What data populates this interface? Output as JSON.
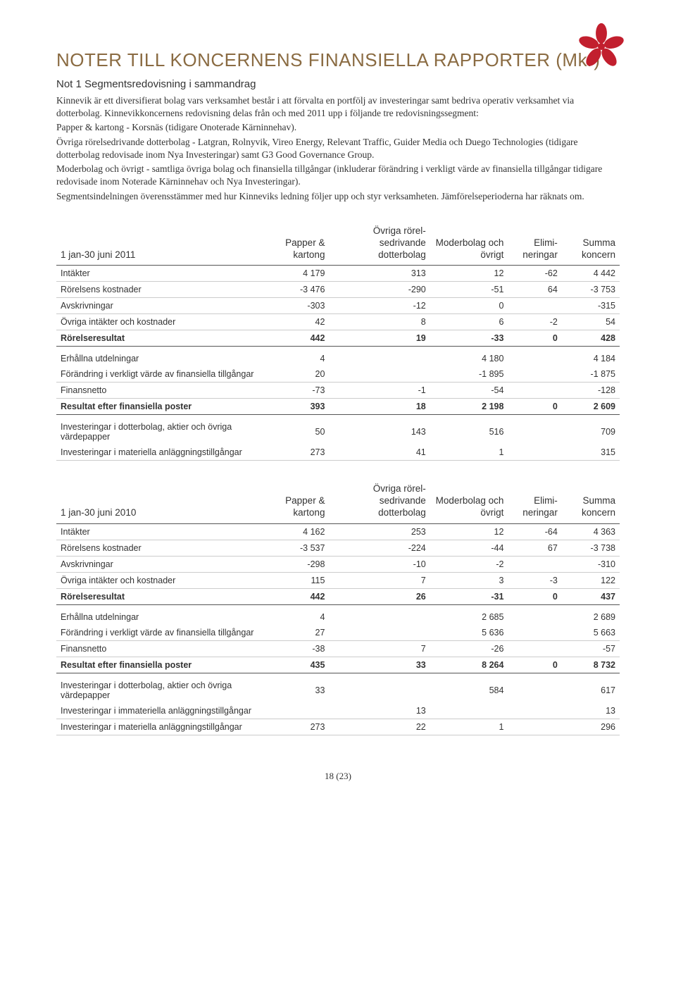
{
  "colors": {
    "heading": "#8a6b42",
    "text": "#333333",
    "logo": "#c21f2e",
    "rule_dark": "#555555",
    "rule_light": "#cccccc",
    "background": "#ffffff"
  },
  "fonts": {
    "heading_family": "Arial Narrow",
    "heading_size_pt": 20,
    "body_family": "Georgia",
    "body_size_pt": 10,
    "table_family": "Arial",
    "table_size_pt": 9
  },
  "title": "NOTER TILL KONCERNENS FINANSIELLA RAPPORTER (Mkr)",
  "subtitle": "Not 1 Segmentsredovisning i sammandrag",
  "paragraphs": [
    "Kinnevik är ett diversifierat bolag vars verksamhet består i att förvalta en portfölj av investeringar samt bedriva operativ verksamhet via dotterbolag. Kinnevikkoncernens redovisning delas från och med 2011 upp i följande tre redovisningssegment:",
    "Papper & kartong - Korsnäs (tidigare Onoterade Kärninnehav).",
    "Övriga rörelsedrivande dotterbolag - Latgran, Rolnyvik, Vireo Energy,  Relevant Traffic, Guider Media och Duego Technologies (tidigare dotterbolag redovisade inom Nya Investeringar) samt G3 Good Governance Group.",
    "Moderbolag och övrigt - samtliga övriga bolag och finansiella tillgångar (inkluderar förändring i verkligt värde av finansiella tillgångar tidigare redovisade inom Noterade Kärninnehav och Nya Investeringar).",
    "Segmentsindelningen överensstämmer med hur Kinneviks ledning följer upp och styr verksamheten. Jämförelseperioderna har räknats om."
  ],
  "columns": [
    "Papper & kartong",
    "Övriga rörel-sedrivande dotterbolag",
    "Moderbolag och övrigt",
    "Elimi-neringar",
    "Summa koncern"
  ],
  "table2011": {
    "period_label": "1 jan-30 juni 2011",
    "rows": [
      {
        "label": "Intäkter",
        "vals": [
          "4 179",
          "313",
          "12",
          "-62",
          "4 442"
        ],
        "bold": false
      },
      {
        "label": "Rörelsens kostnader",
        "vals": [
          "-3 476",
          "-290",
          "-51",
          "64",
          "-3 753"
        ],
        "bold": false
      },
      {
        "label": "Avskrivningar",
        "vals": [
          "-303",
          "-12",
          "0",
          "",
          "-315"
        ],
        "bold": false
      },
      {
        "label": "Övriga intäkter och kostnader",
        "vals": [
          "42",
          "8",
          "6",
          "-2",
          "54"
        ],
        "bold": false
      },
      {
        "label": "Rörelseresultat",
        "vals": [
          "442",
          "19",
          "-33",
          "0",
          "428"
        ],
        "bold": true
      },
      {
        "label": "Erhållna utdelningar",
        "vals": [
          "4",
          "",
          "4 180",
          "",
          "4 184"
        ],
        "bold": false,
        "gap": true
      },
      {
        "label": "Förändring i verkligt värde av finansiella tillgångar",
        "vals": [
          "20",
          "",
          "-1 895",
          "",
          "-1 875"
        ],
        "bold": false
      },
      {
        "label": "Finansnetto",
        "vals": [
          "-73",
          "-1",
          "-54",
          "",
          "-128"
        ],
        "bold": false
      },
      {
        "label": "Resultat efter finansiella poster",
        "vals": [
          "393",
          "18",
          "2 198",
          "0",
          "2 609"
        ],
        "bold": true
      },
      {
        "label": "Investeringar i dotterbolag, aktier och övriga värdepapper",
        "vals": [
          "50",
          "143",
          "516",
          "",
          "709"
        ],
        "bold": false,
        "gap": true
      },
      {
        "label": "Investeringar i materiella anläggningstillgångar",
        "vals": [
          "273",
          "41",
          "1",
          "",
          "315"
        ],
        "bold": false
      }
    ]
  },
  "table2010": {
    "period_label": "1 jan-30 juni 2010",
    "rows": [
      {
        "label": "Intäkter",
        "vals": [
          "4 162",
          "253",
          "12",
          "-64",
          "4 363"
        ],
        "bold": false
      },
      {
        "label": "Rörelsens kostnader",
        "vals": [
          "-3 537",
          "-224",
          "-44",
          "67",
          "-3 738"
        ],
        "bold": false
      },
      {
        "label": "Avskrivningar",
        "vals": [
          "-298",
          "-10",
          "-2",
          "",
          "-310"
        ],
        "bold": false
      },
      {
        "label": "Övriga intäkter och kostnader",
        "vals": [
          "115",
          "7",
          "3",
          "-3",
          "122"
        ],
        "bold": false
      },
      {
        "label": "Rörelseresultat",
        "vals": [
          "442",
          "26",
          "-31",
          "0",
          "437"
        ],
        "bold": true
      },
      {
        "label": "Erhållna utdelningar",
        "vals": [
          "4",
          "",
          "2 685",
          "",
          "2 689"
        ],
        "bold": false,
        "gap": true
      },
      {
        "label": "Förändring i verkligt värde av finansiella tillgångar",
        "vals": [
          "27",
          "",
          "5 636",
          "",
          "5 663"
        ],
        "bold": false
      },
      {
        "label": "Finansnetto",
        "vals": [
          "-38",
          "7",
          "-26",
          "",
          "-57"
        ],
        "bold": false
      },
      {
        "label": "Resultat efter finansiella poster",
        "vals": [
          "435",
          "33",
          "8 264",
          "0",
          "8 732"
        ],
        "bold": true
      },
      {
        "label": "Investeringar i dotterbolag, aktier och övriga värdepapper",
        "vals": [
          "33",
          "",
          "584",
          "",
          "617"
        ],
        "bold": false,
        "gap": true
      },
      {
        "label": "Investeringar i immateriella anläggningstillgångar",
        "vals": [
          "",
          "13",
          "",
          "",
          "13"
        ],
        "bold": false
      },
      {
        "label": "Investeringar i materiella anläggningstillgångar",
        "vals": [
          "273",
          "22",
          "1",
          "",
          "296"
        ],
        "bold": false
      }
    ]
  },
  "page_num": "18 (23)"
}
